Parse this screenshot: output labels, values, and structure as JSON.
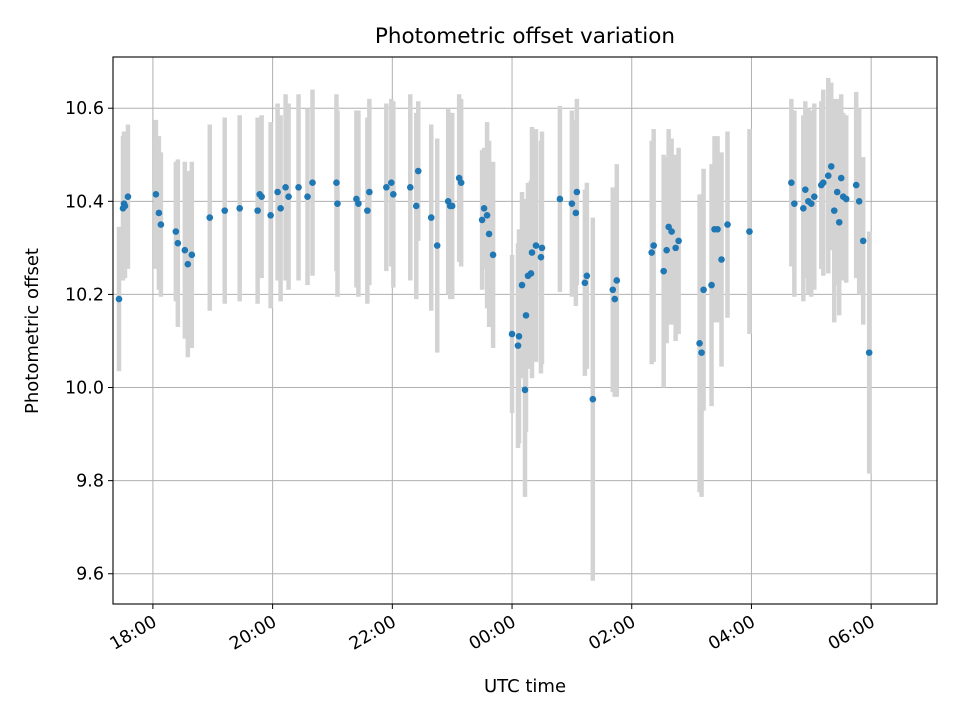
{
  "chart_data": {
    "type": "scatter",
    "title": "Photometric offset variation",
    "xlabel": "UTC time",
    "ylabel": "Photometric offset",
    "x_unit": "UTC (hours, continuing past midnight)",
    "xlim": [
      "17:20",
      "31:06"
    ],
    "ylim": [
      9.535,
      10.71
    ],
    "x_ticks": [
      {
        "at": "18:00",
        "label": "18:00"
      },
      {
        "at": "20:00",
        "label": "20:00"
      },
      {
        "at": "22:00",
        "label": "22:00"
      },
      {
        "at": "24:00",
        "label": "00:00"
      },
      {
        "at": "26:00",
        "label": "02:00"
      },
      {
        "at": "28:00",
        "label": "04:00"
      },
      {
        "at": "30:00",
        "label": "06:00"
      }
    ],
    "y_ticks": [
      9.6,
      9.8,
      10.0,
      10.2,
      10.4,
      10.6
    ],
    "y_tick_labels": [
      "9.6",
      "9.8",
      "10.0",
      "10.2",
      "10.4",
      "10.6"
    ],
    "grid": true,
    "colors": {
      "point": "#1f77b4",
      "errorbar": "#d3d3d3",
      "grid": "#b0b0b0"
    },
    "series": [
      {
        "x": [
          "17:26",
          "17:30",
          "17:31",
          "17:32",
          "17:35",
          "18:03",
          "18:06",
          "18:08",
          "18:23",
          "18:25",
          "18:32",
          "18:35",
          "18:39",
          "18:57",
          "19:12",
          "19:27",
          "19:45",
          "19:47",
          "19:49",
          "19:58",
          "20:05",
          "20:08",
          "20:13",
          "20:16",
          "20:26",
          "20:35",
          "20:40",
          "21:04",
          "21:05",
          "21:24",
          "21:26",
          "21:35",
          "21:37",
          "21:54",
          "21:59",
          "22:01",
          "22:18",
          "22:24",
          "22:26",
          "22:39",
          "22:45",
          "22:56",
          "22:58",
          "23:00",
          "23:07",
          "23:09",
          "23:30",
          "23:32",
          "23:35",
          "23:37",
          "23:41",
          "24:00",
          "24:06",
          "24:07",
          "24:10",
          "24:13",
          "24:14",
          "24:16",
          "24:19",
          "24:20",
          "24:24",
          "24:29",
          "24:30",
          "24:48",
          "25:00",
          "25:04",
          "25:05",
          "25:13",
          "25:15",
          "25:21",
          "25:41",
          "25:43",
          "25:45",
          "26:20",
          "26:22",
          "26:32",
          "26:35",
          "26:37",
          "26:40",
          "26:44",
          "26:47",
          "27:08",
          "27:10",
          "27:12",
          "27:20",
          "27:23",
          "27:26",
          "27:30",
          "27:36",
          "27:58",
          "28:40",
          "28:43",
          "28:52",
          "28:54",
          "28:57",
          "29:00",
          "29:03",
          "29:10",
          "29:12",
          "29:17",
          "29:20",
          "29:23",
          "29:26",
          "29:28",
          "29:30",
          "29:32",
          "29:35",
          "29:45",
          "29:48",
          "29:52",
          "29:58"
        ],
        "y": [
          10.19,
          10.385,
          10.395,
          10.39,
          10.41,
          10.415,
          10.375,
          10.35,
          10.335,
          10.31,
          10.295,
          10.265,
          10.285,
          10.365,
          10.38,
          10.385,
          10.38,
          10.415,
          10.41,
          10.37,
          10.42,
          10.385,
          10.43,
          10.41,
          10.43,
          10.41,
          10.44,
          10.44,
          10.395,
          10.405,
          10.395,
          10.38,
          10.42,
          10.43,
          10.44,
          10.415,
          10.43,
          10.39,
          10.465,
          10.365,
          10.305,
          10.4,
          10.39,
          10.39,
          10.45,
          10.44,
          10.36,
          10.385,
          10.37,
          10.33,
          10.285,
          10.115,
          10.09,
          10.11,
          10.22,
          9.995,
          10.155,
          10.24,
          10.245,
          10.29,
          10.305,
          10.28,
          10.3,
          10.405,
          10.395,
          10.375,
          10.42,
          10.225,
          10.24,
          9.975,
          10.21,
          10.19,
          10.23,
          10.29,
          10.305,
          10.25,
          10.295,
          10.345,
          10.335,
          10.3,
          10.315,
          10.095,
          10.075,
          10.21,
          10.22,
          10.34,
          10.34,
          10.275,
          10.35,
          10.335,
          10.44,
          10.395,
          10.385,
          10.425,
          10.4,
          10.395,
          10.41,
          10.435,
          10.44,
          10.455,
          10.475,
          10.38,
          10.42,
          10.355,
          10.45,
          10.41,
          10.405,
          10.435,
          10.4,
          10.315,
          10.075
        ],
        "y_err": [
          0.155,
          0.155,
          0.155,
          0.155,
          0.155,
          0.16,
          0.165,
          0.155,
          0.15,
          0.18,
          0.19,
          0.2,
          0.2,
          0.2,
          0.2,
          0.2,
          0.2,
          0.16,
          0.175,
          0.2,
          0.19,
          0.2,
          0.2,
          0.2,
          0.2,
          0.19,
          0.2,
          0.19,
          0.2,
          0.19,
          0.2,
          0.2,
          0.2,
          0.18,
          0.18,
          0.2,
          0.2,
          0.2,
          0.15,
          0.2,
          0.23,
          0.2,
          0.2,
          0.2,
          0.18,
          0.18,
          0.15,
          0.13,
          0.2,
          0.2,
          0.2,
          0.17,
          0.22,
          0.23,
          0.2,
          0.23,
          0.25,
          0.2,
          0.2,
          0.27,
          0.25,
          0.25,
          0.25,
          0.2,
          0.2,
          0.2,
          0.2,
          0.2,
          0.2,
          0.39,
          0.22,
          0.21,
          0.25,
          0.24,
          0.25,
          0.25,
          0.2,
          0.21,
          0.2,
          0.2,
          0.2,
          0.32,
          0.31,
          0.26,
          0.26,
          0.2,
          0.2,
          0.23,
          0.2,
          0.22,
          0.18,
          0.2,
          0.2,
          0.19,
          0.2,
          0.2,
          0.2,
          0.18,
          0.2,
          0.21,
          0.18,
          0.24,
          0.2,
          0.2,
          0.18,
          0.18,
          0.18,
          0.2,
          0.2,
          0.18,
          0.26
        ]
      }
    ]
  }
}
